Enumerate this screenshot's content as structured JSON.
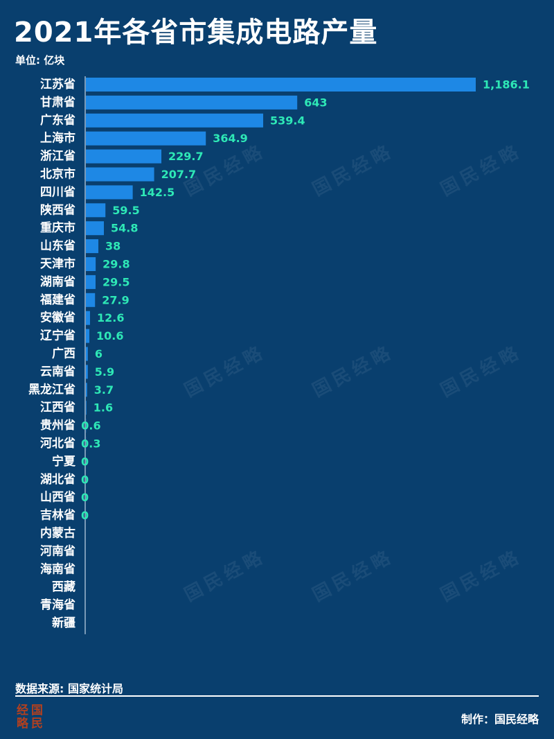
{
  "header": {
    "title": "2021年各省市集成电路产量",
    "unit": "单位: 亿块"
  },
  "footer": {
    "source": "数据来源: 国家统计局",
    "credit": "制作：国民经略",
    "logo_chars": [
      "经",
      "国",
      "略",
      "民"
    ]
  },
  "watermark_text": "国民经略",
  "colors": {
    "background": "#093f6e",
    "bar": "#1e88e5",
    "value_label": "#2ee8b6",
    "axis": "#9fb8cf"
  },
  "chart_data": {
    "type": "bar",
    "orientation": "horizontal",
    "title": "2021年各省市集成电路产量",
    "unit": "单位: 亿块",
    "categories": [
      "江苏省",
      "甘肃省",
      "广东省",
      "上海市",
      "浙江省",
      "北京市",
      "四川省",
      "陕西省",
      "重庆市",
      "山东省",
      "天津市",
      "湖南省",
      "福建省",
      "安徽省",
      "辽宁省",
      "广西",
      "云南省",
      "黑龙江省",
      "江西省",
      "贵州省",
      "河北省",
      "宁夏",
      "湖北省",
      "山西省",
      "吉林省",
      "内蒙古",
      "河南省",
      "海南省",
      "西藏",
      "青海省",
      "新疆"
    ],
    "values": [
      1186.1,
      643,
      539.4,
      364.9,
      229.7,
      207.7,
      142.5,
      59.5,
      54.8,
      38,
      29.8,
      29.5,
      27.9,
      12.6,
      10.6,
      6,
      5.9,
      3.7,
      1.6,
      0.6,
      0.3,
      0,
      0,
      0,
      0,
      null,
      null,
      null,
      null,
      null,
      null
    ],
    "value_labels": [
      "1,186.1",
      "643",
      "539.4",
      "364.9",
      "229.7",
      "207.7",
      "142.5",
      "59.5",
      "54.8",
      "38",
      "29.8",
      "29.5",
      "27.9",
      "12.6",
      "10.6",
      "6",
      "5.9",
      "3.7",
      "1.6",
      "0.6",
      "0.3",
      "0",
      "0",
      "0",
      "0",
      "",
      "",
      "",
      "",
      "",
      ""
    ],
    "xlim": [
      0,
      1186.1
    ],
    "grid": false,
    "legend": "none"
  }
}
